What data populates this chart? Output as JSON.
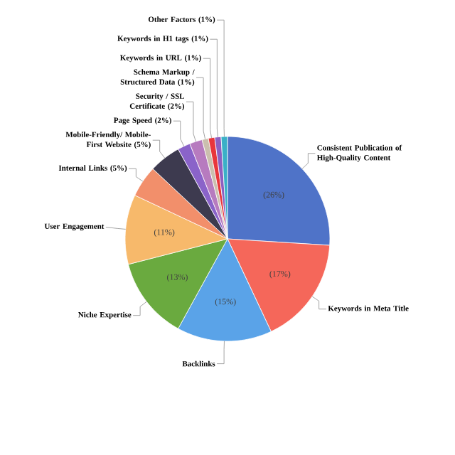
{
  "chart_data": {
    "type": "pie",
    "categories": [
      "Consistent Publication of High-Quality Content",
      "Keywords in Meta Title",
      "Backlinks",
      "Niche Expertise",
      "User Engagement",
      "Internal Links (5%)",
      "Mobile-Friendly/ Mobile-First Website (5%)",
      "Page Speed (2%)",
      "Security / SSL Certificate (2%)",
      "Schema Markup / Structured Data (1%)",
      "Keywords in URL (1%)",
      "Keywords in H1 tags (1%)",
      "Other Factors (1%)"
    ],
    "values": [
      26,
      17,
      15,
      13,
      11,
      5,
      5,
      2,
      2,
      1,
      1,
      1,
      1
    ],
    "colors": [
      "#4f73c8",
      "#f5675a",
      "#5aa3e8",
      "#6aaa3f",
      "#f7b96b",
      "#f28f6b",
      "#3d3a4f",
      "#8a63c9",
      "#b77bbf",
      "#cbbfae",
      "#e8363b",
      "#8e5fc0",
      "#3ab0c7"
    ],
    "value_labels": [
      "(26%)",
      "(17%)",
      "(15%)",
      "(13%)",
      "(11%)",
      null,
      null,
      null,
      null,
      null,
      null,
      null,
      null
    ]
  }
}
